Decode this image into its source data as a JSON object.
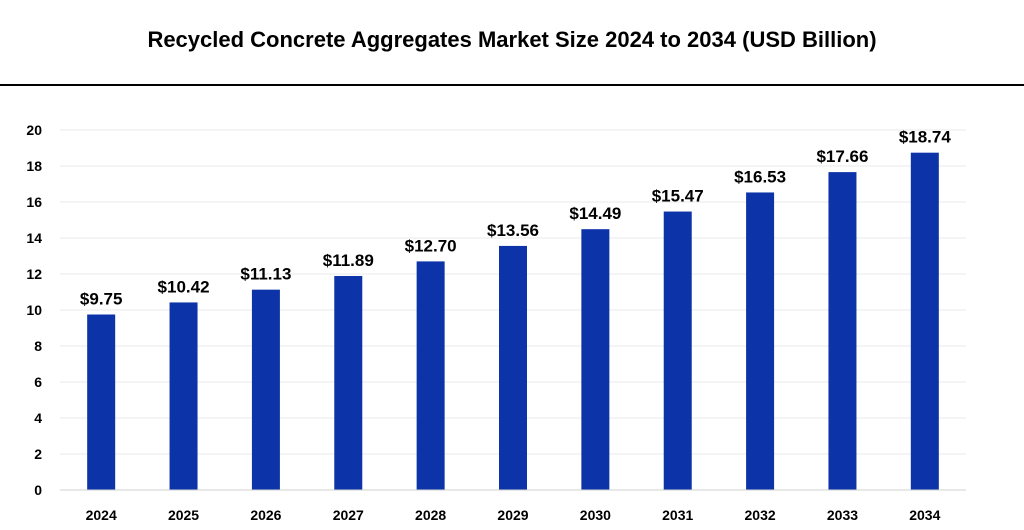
{
  "chart_data": {
    "type": "bar",
    "title": "Recycled Concrete Aggregates Market Size 2024 to 2034 (USD Billion)",
    "categories": [
      "2024",
      "2025",
      "2026",
      "2027",
      "2028",
      "2029",
      "2030",
      "2031",
      "2032",
      "2033",
      "2034"
    ],
    "values": [
      9.75,
      10.42,
      11.13,
      11.89,
      12.7,
      13.56,
      14.49,
      15.47,
      16.53,
      17.66,
      18.74
    ],
    "data_labels": [
      "$9.75",
      "$10.42",
      "$11.13",
      "$11.89",
      "$12.70",
      "$13.56",
      "$14.49",
      "$15.47",
      "$16.53",
      "$17.66",
      "$18.74"
    ],
    "y_ticks": [
      "0",
      "2",
      "4",
      "6",
      "8",
      "10",
      "12",
      "14",
      "16",
      "18",
      "20"
    ],
    "xlabel": "",
    "ylabel": "",
    "ylim": [
      0,
      20
    ],
    "grid": true,
    "legend": "none",
    "bar_color": "#0d33a8",
    "grid_color": "#e8e8e8"
  }
}
